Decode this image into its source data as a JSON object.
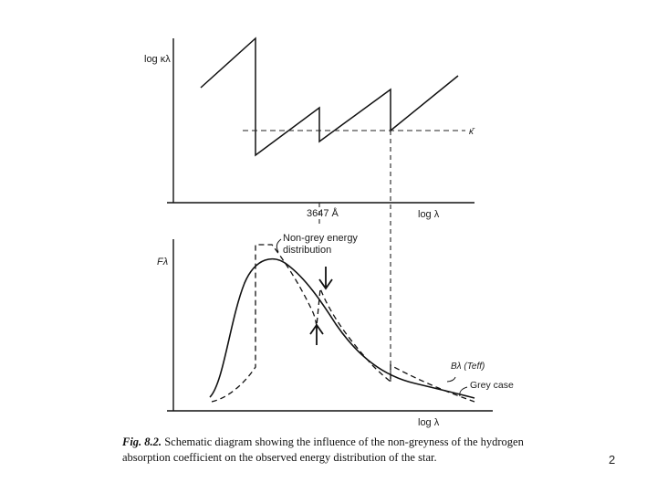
{
  "top_panel": {
    "y_label": "log κλ",
    "x_label": "log λ",
    "balmer_edge_label": "3647 Å",
    "dashed_level_label": "κ̄"
  },
  "bottom_panel": {
    "y_label": "Fλ",
    "x_label": "log λ",
    "non_grey_label_line1": "Non-grey energy",
    "non_grey_label_line2": "distribution",
    "planck_label": "Bλ (Teff)",
    "grey_label": "Grey case"
  },
  "caption": {
    "fig_number": "Fig. 8.2.",
    "text": "Schematic diagram showing the influence of the non-greyness of the hydrogen absorption coefficient on the observed energy distribution of the star."
  },
  "page_number": "2"
}
